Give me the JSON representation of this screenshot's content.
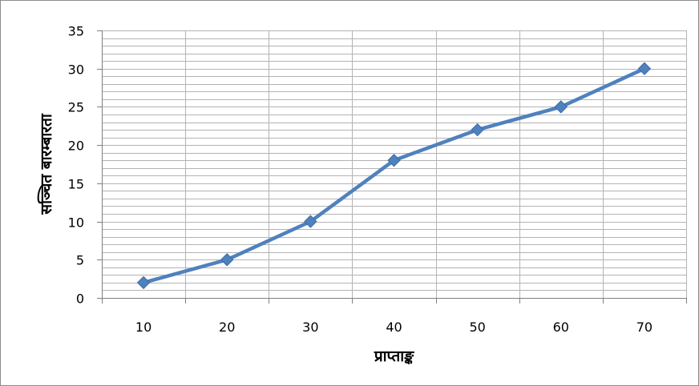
{
  "chart_data": {
    "type": "line",
    "title": "",
    "xlabel": "प्राप्ताङ्क",
    "ylabel": "सञ्चित बारम्बारता",
    "categories": [
      "10",
      "20",
      "30",
      "40",
      "50",
      "60",
      "70"
    ],
    "series": [
      {
        "values": [
          2,
          5,
          10,
          18,
          22,
          25,
          30
        ]
      }
    ],
    "ylim": [
      0,
      35
    ],
    "yticks": [
      "0",
      "5",
      "10",
      "15",
      "20",
      "25",
      "30",
      "35"
    ],
    "grid": "horizontal major and minor",
    "legend": "none",
    "colors": {
      "series": "#4f81bd",
      "marker": "#4f81bd",
      "grid": "#b3b3b3",
      "axis": "#808080"
    }
  }
}
